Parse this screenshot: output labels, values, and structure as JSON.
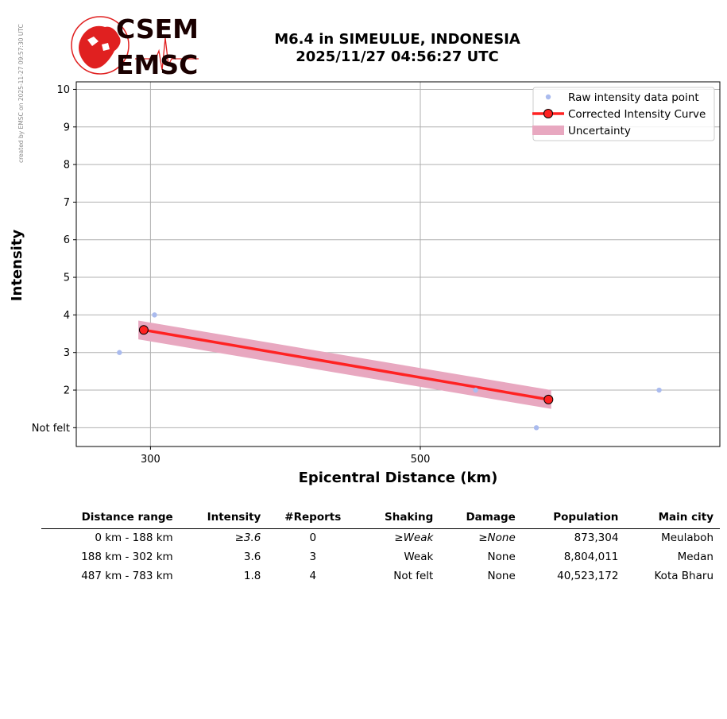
{
  "sidebar_note": "created by EMSC on 2025-11-27 09:57:30 UTC",
  "logo": {
    "line1": "CSEM",
    "line2": "EMSC",
    "color": "#e02020"
  },
  "header": {
    "title_line1": "M6.4 in SIMEULUE, INDONESIA",
    "title_line2": "2025/11/27 04:56:27 UTC"
  },
  "chart_data": {
    "type": "scatter",
    "xlabel": "Epicentral Distance (km)",
    "ylabel": "Intensity",
    "xlim": [
      245,
      722
    ],
    "ylim": [
      0.5,
      10.2
    ],
    "xticks": [
      300,
      500
    ],
    "yticks": [
      {
        "value": 1,
        "label": "Not felt"
      },
      {
        "value": 2,
        "label": "2"
      },
      {
        "value": 3,
        "label": "3"
      },
      {
        "value": 4,
        "label": "4"
      },
      {
        "value": 5,
        "label": "5"
      },
      {
        "value": 6,
        "label": "6"
      },
      {
        "value": 7,
        "label": "7"
      },
      {
        "value": 8,
        "label": "8"
      },
      {
        "value": 9,
        "label": "9"
      },
      {
        "value": 10,
        "label": "10"
      }
    ],
    "grid": true,
    "legend_position": "top-right",
    "series": [
      {
        "name": "Raw intensity data point",
        "kind": "scatter",
        "color": "#aabbee",
        "points": [
          [
            277,
            3
          ],
          [
            303,
            4
          ],
          [
            541,
            2
          ],
          [
            586,
            1
          ],
          [
            677,
            2
          ]
        ]
      },
      {
        "name": "Corrected Intensity Curve",
        "kind": "line",
        "color": "#ff2222",
        "points": [
          [
            295,
            3.6
          ],
          [
            595,
            1.75
          ]
        ]
      },
      {
        "name": "Uncertainty",
        "kind": "band",
        "color": "#e8a8c0",
        "lower": [
          [
            291,
            3.35
          ],
          [
            597,
            1.5
          ]
        ],
        "upper": [
          [
            291,
            3.85
          ],
          [
            597,
            2.0
          ]
        ]
      }
    ]
  },
  "table": {
    "columns": [
      "Distance range",
      "Intensity",
      "#Reports",
      "Shaking",
      "Damage",
      "Population",
      "Main city"
    ],
    "rows": [
      {
        "range": "0 km -  188 km",
        "intensity": "≥3.6",
        "reports": "0",
        "shaking": "≥Weak",
        "damage": "≥None",
        "population": "873,304",
        "city": "Meulaboh"
      },
      {
        "range": "188 km -  302 km",
        "intensity": "3.6",
        "reports": "3",
        "shaking": "Weak",
        "damage": "None",
        "population": "8,804,011",
        "city": "Medan"
      },
      {
        "range": "487 km -  783 km",
        "intensity": "1.8",
        "reports": "4",
        "shaking": "Not felt",
        "damage": "None",
        "population": "40,523,172",
        "city": "Kota Bharu"
      }
    ]
  }
}
